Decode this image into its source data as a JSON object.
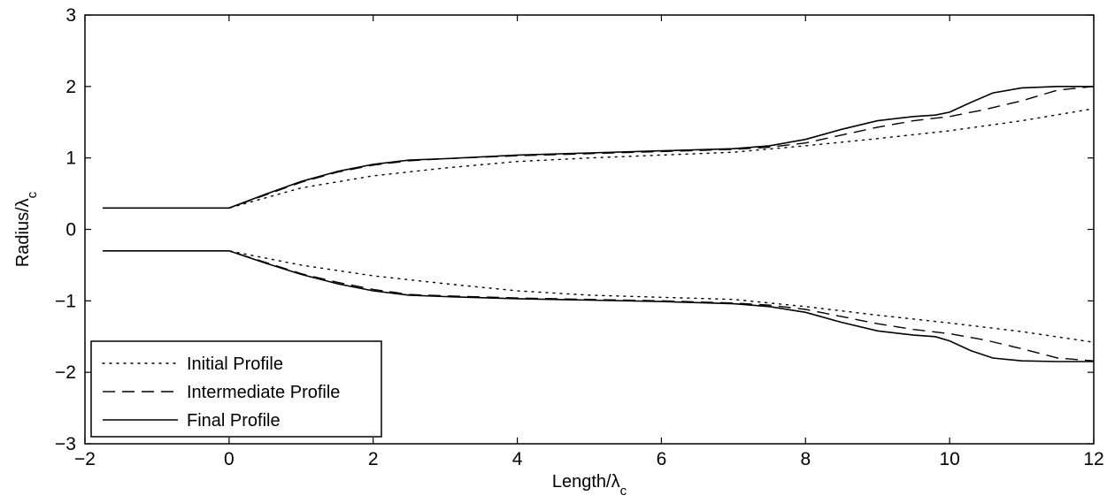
{
  "chart_data": {
    "type": "line",
    "title": "",
    "xlabel": "Length/λc",
    "ylabel": "Radius/λc",
    "xlabel_parts": {
      "main": "Length/λ",
      "sub": "c"
    },
    "ylabel_parts": {
      "main": "Radius/λ",
      "sub": "c"
    },
    "xlim": [
      -2,
      12
    ],
    "ylim": [
      -3,
      3
    ],
    "xticks": [
      -2,
      0,
      2,
      4,
      6,
      8,
      10,
      12
    ],
    "yticks": [
      -3,
      -2,
      -1,
      0,
      1,
      2,
      3
    ],
    "xtick_labels": [
      "−2",
      "0",
      "2",
      "4",
      "6",
      "8",
      "10",
      "12"
    ],
    "ytick_labels": [
      "−3",
      "−2",
      "−1",
      "0",
      "1",
      "2",
      "3"
    ],
    "grid": false,
    "legend_position": "bottom-left",
    "series": [
      {
        "name": "Initial Profile",
        "style": "dotted",
        "color": "#000000",
        "upper": {
          "x": [
            -1.75,
            0,
            1,
            2,
            3,
            4,
            5,
            6,
            7,
            8,
            9,
            10,
            11,
            12
          ],
          "y": [
            0.3,
            0.3,
            0.58,
            0.75,
            0.86,
            0.95,
            1.0,
            1.04,
            1.08,
            1.17,
            1.27,
            1.38,
            1.52,
            1.69
          ]
        },
        "lower": {
          "x": [
            -1.75,
            0,
            1,
            2,
            3,
            4,
            5,
            6,
            7,
            8,
            9,
            10,
            11,
            12
          ],
          "y": [
            -0.3,
            -0.3,
            -0.5,
            -0.65,
            -0.76,
            -0.86,
            -0.92,
            -0.95,
            -0.98,
            -1.08,
            -1.2,
            -1.31,
            -1.43,
            -1.58
          ]
        }
      },
      {
        "name": "Intermediate Profile",
        "style": "dashed",
        "color": "#000000",
        "upper": {
          "x": [
            -1.75,
            0,
            0.5,
            1,
            1.5,
            2,
            2.5,
            3,
            4,
            5,
            6,
            7,
            7.5,
            8,
            8.5,
            9,
            9.5,
            10,
            10.5,
            11,
            11.5,
            12
          ],
          "y": [
            0.3,
            0.3,
            0.48,
            0.66,
            0.8,
            0.9,
            0.96,
            0.99,
            1.03,
            1.06,
            1.09,
            1.12,
            1.15,
            1.21,
            1.32,
            1.43,
            1.52,
            1.58,
            1.68,
            1.8,
            1.95,
            2.0
          ]
        },
        "lower": {
          "x": [
            -1.75,
            0,
            0.5,
            1,
            1.5,
            2,
            2.5,
            3,
            4,
            5,
            6,
            7,
            7.5,
            8,
            8.5,
            9,
            9.5,
            10,
            10.5,
            11,
            11.5,
            12
          ],
          "y": [
            -0.3,
            -0.3,
            -0.46,
            -0.62,
            -0.74,
            -0.84,
            -0.91,
            -0.93,
            -0.96,
            -0.98,
            -1.0,
            -1.03,
            -1.06,
            -1.12,
            -1.22,
            -1.32,
            -1.4,
            -1.46,
            -1.55,
            -1.67,
            -1.8,
            -1.84
          ]
        }
      },
      {
        "name": "Final Profile",
        "style": "solid",
        "color": "#000000",
        "upper": {
          "x": [
            -1.75,
            0,
            0.5,
            1,
            1.5,
            2,
            2.5,
            3,
            4,
            5,
            6,
            7,
            7.5,
            8,
            8.5,
            9,
            9.5,
            9.8,
            10,
            10.3,
            10.6,
            11,
            11.5,
            12
          ],
          "y": [
            0.3,
            0.3,
            0.49,
            0.67,
            0.81,
            0.91,
            0.97,
            0.99,
            1.04,
            1.07,
            1.1,
            1.13,
            1.17,
            1.26,
            1.4,
            1.52,
            1.58,
            1.6,
            1.64,
            1.78,
            1.91,
            1.98,
            2.0,
            2.0
          ]
        },
        "lower": {
          "x": [
            -1.75,
            0,
            0.5,
            1,
            1.5,
            2,
            2.5,
            3,
            4,
            5,
            6,
            7,
            7.5,
            8,
            8.5,
            9,
            9.5,
            9.8,
            10,
            10.3,
            10.6,
            11,
            11.5,
            12
          ],
          "y": [
            -0.3,
            -0.3,
            -0.47,
            -0.63,
            -0.76,
            -0.86,
            -0.92,
            -0.94,
            -0.97,
            -0.99,
            -1.01,
            -1.04,
            -1.08,
            -1.16,
            -1.3,
            -1.42,
            -1.48,
            -1.5,
            -1.56,
            -1.7,
            -1.8,
            -1.84,
            -1.85,
            -1.85
          ]
        }
      }
    ]
  }
}
